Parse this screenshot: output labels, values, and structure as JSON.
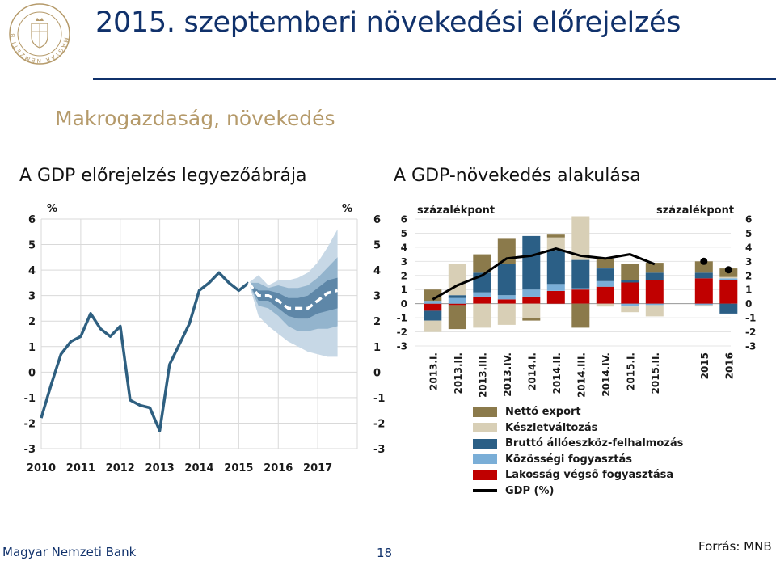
{
  "header": {
    "title": "2015. szeptemberi növekedési előrejelzés",
    "subtitle": "Makrogazdaság, növekedés"
  },
  "logo": {
    "icon": "mnb-seal-icon",
    "text": "MAGYAR NEMZETI BANK"
  },
  "footer": {
    "left": "Magyar Nemzeti Bank",
    "page": "18",
    "source": "Forrás: MNB"
  },
  "colors": {
    "navy": "#10316b",
    "gold": "#b59a6a",
    "gdp_line": "#2e5f80",
    "fan_outer": "#c7d8e6",
    "fan_mid": "#93b4cd",
    "fan_inner": "#5e87a8",
    "export": "#8b7a4b",
    "inventory": "#d8cfb6",
    "investment": "#2b5f86",
    "government": "#7aaed7",
    "household": "#c00000",
    "gdp_black": "#000000"
  },
  "chart_data": [
    {
      "type": "line",
      "title": "A GDP előrejelzés legyezőábrája",
      "ylabel_left": "%",
      "ylabel_right": "%",
      "ylim": [
        -3,
        6
      ],
      "yticks": [
        -3,
        -2,
        -1,
        0,
        1,
        2,
        3,
        4,
        5,
        6
      ],
      "xticks": [
        "2010",
        "2011",
        "2012",
        "2013",
        "2014",
        "2015",
        "2016",
        "2017"
      ],
      "grid": true,
      "series": [
        {
          "name": "",
          "style": "solid",
          "x": [
            2010.0,
            2010.25,
            2010.5,
            2010.75,
            2011.0,
            2011.25,
            2011.5,
            2011.75,
            2012.0,
            2012.25,
            2012.5,
            2012.75,
            2013.0,
            2013.25,
            2013.5,
            2013.75,
            2014.0,
            2014.25,
            2014.5,
            2014.75,
            2015.0,
            2015.25
          ],
          "values": [
            -1.8,
            -0.5,
            0.7,
            1.2,
            1.4,
            2.3,
            1.7,
            1.4,
            1.8,
            -1.1,
            -1.3,
            -1.4,
            -2.3,
            0.3,
            1.1,
            1.9,
            3.2,
            3.5,
            3.9,
            3.5,
            3.2,
            3.5
          ]
        },
        {
          "name": "",
          "style": "dashed",
          "x": [
            2015.25,
            2015.5,
            2015.75,
            2016.0,
            2016.25,
            2016.5,
            2016.75,
            2017.0,
            2017.25,
            2017.5
          ],
          "values": [
            3.5,
            3.0,
            3.0,
            2.8,
            2.5,
            2.5,
            2.5,
            2.8,
            3.1,
            3.2
          ]
        }
      ],
      "fan_bands": {
        "x": [
          2015.25,
          2015.5,
          2015.75,
          2016.0,
          2016.25,
          2016.5,
          2016.75,
          2017.0,
          2017.25,
          2017.5
        ],
        "outer_high": [
          3.5,
          3.8,
          3.4,
          3.6,
          3.6,
          3.7,
          3.9,
          4.3,
          4.9,
          5.6
        ],
        "outer_low": [
          3.5,
          2.2,
          1.8,
          1.5,
          1.2,
          1.0,
          0.8,
          0.7,
          0.6,
          0.6
        ],
        "mid_high": [
          3.5,
          3.5,
          3.3,
          3.4,
          3.3,
          3.3,
          3.4,
          3.7,
          4.1,
          4.5
        ],
        "mid_low": [
          3.5,
          2.6,
          2.5,
          2.2,
          1.8,
          1.6,
          1.6,
          1.7,
          1.7,
          1.8
        ],
        "inner_high": [
          3.5,
          3.2,
          3.2,
          3.1,
          2.9,
          2.9,
          3.0,
          3.3,
          3.6,
          3.7
        ],
        "inner_low": [
          3.5,
          2.8,
          2.8,
          2.5,
          2.2,
          2.1,
          2.1,
          2.3,
          2.4,
          2.5
        ]
      }
    },
    {
      "type": "bar",
      "stacked": true,
      "title": "A GDP-növekedés alakulása",
      "ylabel_left": "százalékpont",
      "ylabel_right": "százalékpont",
      "ylim": [
        -3,
        6
      ],
      "yticks": [
        -3,
        -2,
        -1,
        0,
        1,
        2,
        3,
        4,
        5,
        6
      ],
      "categories": [
        "2013.I.",
        "2013.II.",
        "2013.III.",
        "2013.IV.",
        "2014.I.",
        "2014.II.",
        "2014.III.",
        "2014.IV.",
        "2015.I.",
        "2015.II.",
        "2015",
        "2016"
      ],
      "grid": true,
      "series": [
        {
          "name": "Nettó export",
          "values": [
            0.8,
            -1.7,
            1.3,
            1.8,
            -0.2,
            0.2,
            -1.7,
            0.7,
            1.1,
            0.7,
            0.8,
            0.6
          ]
        },
        {
          "name": "Készletváltozás",
          "values": [
            -0.8,
            2.2,
            -1.7,
            -1.5,
            -1.0,
            0.9,
            3.1,
            -0.2,
            -0.4,
            -0.8,
            -0.1,
            0.1
          ]
        },
        {
          "name": "Bruttó állóeszköz-felhalmozás",
          "values": [
            -0.7,
            0.2,
            1.4,
            2.2,
            3.8,
            2.4,
            2.0,
            0.9,
            0.2,
            0.5,
            0.4,
            -0.7
          ]
        },
        {
          "name": "Közösségi fogyasztás",
          "values": [
            0.2,
            0.4,
            0.3,
            0.3,
            0.5,
            0.5,
            0.1,
            0.4,
            -0.2,
            -0.1,
            -0.1,
            0.1
          ]
        },
        {
          "name": "Lakosság végső fogyasztása",
          "values": [
            -0.5,
            -0.1,
            0.5,
            0.3,
            0.5,
            0.9,
            1.0,
            1.2,
            1.5,
            1.7,
            1.8,
            1.7
          ]
        }
      ],
      "gdp_line": {
        "name": "GDP (%)",
        "values": [
          0.3,
          1.3,
          2.0,
          3.2,
          3.4,
          3.9,
          3.4,
          3.2,
          3.5,
          2.8,
          3.0,
          2.4
        ]
      }
    }
  ]
}
